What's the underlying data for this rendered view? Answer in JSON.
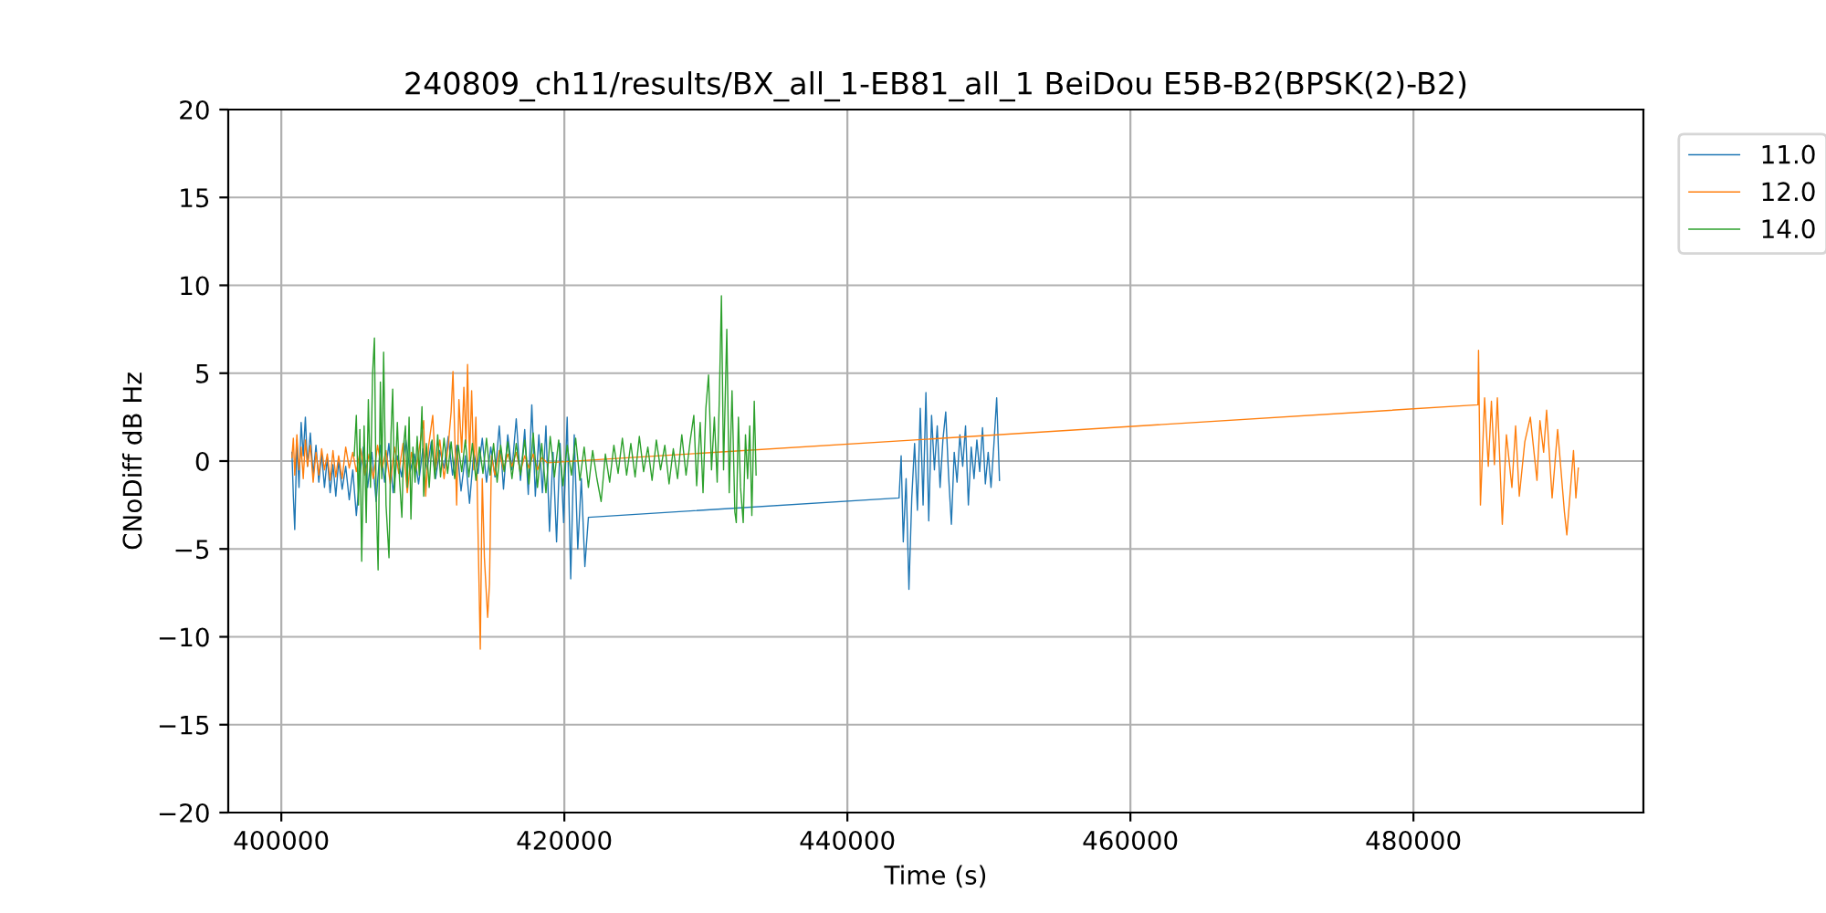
{
  "chart_data": {
    "type": "line",
    "title": "240809_ch11/results/BX_all_1-EB81_all_1 BeiDou E5B-B2(BPSK(2)-B2)",
    "xlabel": "Time (s)",
    "ylabel": "CNoDiff dB Hz",
    "xlim": [
      396250,
      496250
    ],
    "xticks": [
      400000,
      420000,
      440000,
      460000,
      480000
    ],
    "ylim": [
      -20,
      20
    ],
    "yticks": [
      -20,
      -15,
      -10,
      -5,
      0,
      5,
      10,
      15,
      20
    ],
    "grid": true,
    "legend": "top right",
    "series": [
      {
        "name": "11.0",
        "color": "#1f77b4",
        "x": [
          400750,
          400850,
          400950,
          401100,
          401250,
          401400,
          401550,
          401700,
          401850,
          402050,
          402250,
          402450,
          402650,
          402850,
          403050,
          403250,
          403450,
          403650,
          403850,
          404050,
          404300,
          404550,
          404800,
          405050,
          405300,
          405550,
          405800,
          406100,
          406400,
          406700,
          407000,
          407300,
          407600,
          407900,
          408200,
          408500,
          408800,
          409100,
          409400,
          409700,
          410000,
          410300,
          410600,
          410900,
          411200,
          411500,
          411800,
          412100,
          412400,
          412700,
          413000,
          413300,
          413600,
          413900,
          414200,
          414500,
          414800,
          415100,
          415400,
          415700,
          416000,
          416300,
          416600,
          416900,
          417200,
          417450,
          417700,
          417950,
          418200,
          418450,
          418700,
          418950,
          419200,
          419450,
          419700,
          419950,
          420200,
          420450,
          420700,
          420950,
          421200,
          421450,
          421700,
          443650,
          443800,
          443950,
          444150,
          444350,
          444550,
          444750,
          444950,
          445150,
          445350,
          445550,
          445750,
          445950,
          446150,
          446350,
          446550,
          446750,
          446950,
          447150,
          447350,
          447550,
          447750,
          447950,
          448150,
          448350,
          448550,
          448750,
          448950,
          449150,
          449350,
          449550,
          449750,
          449950,
          450150,
          450350,
          450550,
          450750
        ],
        "values": [
          0.5,
          -2.0,
          -3.9,
          1.2,
          -1.5,
          2.2,
          0.3,
          2.5,
          -0.3,
          1.6,
          -0.8,
          0.9,
          -1.2,
          0.4,
          -1.5,
          0.2,
          -1.8,
          -0.2,
          -2.0,
          0.0,
          -1.6,
          -0.3,
          -2.2,
          -0.5,
          -3.1,
          -0.8,
          0.8,
          -1.5,
          0.5,
          -2.3,
          0.9,
          -1.2,
          1.0,
          -1.8,
          0.3,
          -0.9,
          1.2,
          -0.6,
          0.4,
          -1.3,
          0.7,
          -0.5,
          1.1,
          -1.0,
          0.6,
          -0.4,
          1.4,
          -0.8,
          0.9,
          -1.7,
          0.3,
          -2.4,
          0.5,
          -0.7,
          1.3,
          -1.2,
          0.8,
          -0.9,
          2.0,
          -1.6,
          1.5,
          -0.5,
          2.4,
          -1.1,
          1.8,
          -1.9,
          3.2,
          -2.0,
          1.5,
          -1.8,
          2.0,
          -4.0,
          0.5,
          -4.6,
          1.0,
          -3.5,
          2.5,
          -6.7,
          1.5,
          -5.0,
          -1.0,
          -6.0,
          -3.2,
          -2.1,
          0.3,
          -4.6,
          -1.0,
          -7.3,
          -2.1,
          1.0,
          -2.8,
          3.0,
          -2.5,
          3.9,
          -3.4,
          2.6,
          -0.5,
          2.0,
          -1.5,
          1.2,
          2.8,
          -0.8,
          -3.6,
          0.5,
          -1.2,
          1.5,
          -0.3,
          2.0,
          -2.5,
          0.8,
          -1.0,
          1.2,
          -0.6,
          1.9,
          -1.3,
          0.5,
          -1.5,
          0.9,
          3.6,
          -1.1
        ]
      },
      {
        "name": "12.0",
        "color": "#ff7f0e",
        "x": [
          400750,
          400850,
          400950,
          401100,
          401250,
          401400,
          401550,
          401700,
          401850,
          402050,
          402250,
          402450,
          402650,
          402850,
          403050,
          403250,
          403450,
          403650,
          403850,
          404050,
          404300,
          404550,
          404800,
          405050,
          405300,
          405600,
          405900,
          406200,
          406500,
          406800,
          407100,
          407400,
          407700,
          408000,
          408300,
          408600,
          408900,
          409200,
          409500,
          409800,
          410060,
          410200,
          410400,
          410700,
          410900,
          411200,
          411500,
          411800,
          412000,
          412130,
          412390,
          412550,
          412750,
          412900,
          413050,
          413160,
          413300,
          413450,
          413600,
          413750,
          413900,
          414060,
          414200,
          414350,
          414580,
          414710,
          414850,
          415100,
          415400,
          415700,
          416000,
          416300,
          416600,
          416900,
          417200,
          417500,
          417800,
          418100,
          418400,
          418800,
          484555,
          484600,
          484735,
          485030,
          485290,
          485510,
          485720,
          485930,
          486280,
          486570,
          486960,
          487220,
          487480,
          487870,
          488260,
          488730,
          488940,
          489200,
          489410,
          489800,
          490190,
          490670,
          490840,
          491310,
          491480,
          491650
        ],
        "values": [
          0.2,
          1.3,
          -0.8,
          1.5,
          -0.5,
          0.8,
          -1.0,
          1.2,
          -0.3,
          0.9,
          -1.2,
          0.5,
          -0.8,
          0.7,
          -0.5,
          0.4,
          -1.1,
          0.6,
          -0.9,
          0.3,
          -1.0,
          0.8,
          -0.4,
          0.5,
          -0.6,
          0.7,
          -0.8,
          0.4,
          -1.0,
          0.9,
          -0.5,
          0.6,
          -1.3,
          0.8,
          -0.7,
          1.0,
          -1.8,
          0.5,
          -0.6,
          1.0,
          2.3,
          -2.0,
          0.8,
          2.6,
          -0.5,
          1.2,
          -1.0,
          0.9,
          2.8,
          5.1,
          -2.5,
          3.5,
          0.5,
          4.2,
          1.0,
          5.5,
          0.0,
          4.0,
          -0.5,
          2.5,
          -4.0,
          -10.7,
          -1.0,
          -5.5,
          -8.9,
          -7.0,
          0.3,
          -0.8,
          0.6,
          -0.5,
          0.4,
          -0.3,
          0.5,
          -0.6,
          0.3,
          -0.4,
          0.4,
          -0.5,
          0.2,
          -0.1,
          3.2,
          6.3,
          -2.5,
          3.6,
          -0.3,
          3.4,
          -0.2,
          3.6,
          -3.6,
          1.5,
          -1.5,
          2.0,
          -2.0,
          1.1,
          2.5,
          -1.1,
          2.3,
          0.5,
          2.9,
          -2.1,
          1.8,
          -2.9,
          -4.2,
          0.6,
          -2.1,
          -0.4
        ]
      },
      {
        "name": "14.0",
        "color": "#2ca02c",
        "x": [
          405150,
          405300,
          405450,
          405550,
          405680,
          405850,
          406000,
          406150,
          406300,
          406450,
          406580,
          406700,
          406840,
          407000,
          407100,
          407230,
          407400,
          407610,
          407750,
          407870,
          408000,
          408200,
          408350,
          408520,
          408650,
          408770,
          408900,
          409030,
          409160,
          409300,
          409450,
          409600,
          409750,
          409940,
          410060,
          410250,
          410450,
          410650,
          410850,
          411050,
          411250,
          411500,
          411750,
          412000,
          412250,
          412500,
          412750,
          413000,
          413250,
          413500,
          413750,
          414000,
          414250,
          414500,
          414750,
          415000,
          415250,
          415500,
          415750,
          416000,
          416300,
          416600,
          416900,
          417200,
          417500,
          417800,
          418100,
          418400,
          418700,
          419000,
          419300,
          419600,
          419900,
          420200,
          420500,
          420800,
          421100,
          421400,
          421700,
          422000,
          422300,
          422600,
          422900,
          423200,
          423500,
          423800,
          424100,
          424400,
          424700,
          425000,
          425300,
          425600,
          425900,
          426200,
          426500,
          426800,
          427100,
          427400,
          427700,
          428000,
          428300,
          428600,
          428900,
          429150,
          429350,
          429600,
          429800,
          430000,
          430190,
          430400,
          430600,
          430800,
          430950,
          431100,
          431250,
          431480,
          431650,
          431850,
          432050,
          432150,
          432300,
          432450,
          432640,
          432800,
          432950,
          433100,
          433250,
          433420,
          433550
        ],
        "values": [
          0.3,
          2.6,
          -2.5,
          1.8,
          -5.7,
          2.0,
          -3.5,
          3.5,
          -1.5,
          5.0,
          7.0,
          -2.0,
          -6.2,
          4.5,
          -1.0,
          6.2,
          -2.5,
          -5.5,
          1.5,
          4.1,
          -1.8,
          2.2,
          -1.0,
          -3.2,
          1.0,
          2.0,
          -1.5,
          2.5,
          -3.3,
          0.8,
          -1.2,
          1.4,
          -0.8,
          3.1,
          -2.0,
          1.0,
          -1.5,
          1.2,
          -1.0,
          1.5,
          -0.9,
          1.3,
          -0.7,
          1.1,
          -1.0,
          0.9,
          -0.6,
          1.2,
          -0.9,
          1.0,
          -1.1,
          0.8,
          -0.7,
          1.3,
          -0.8,
          1.0,
          -1.2,
          0.9,
          -0.6,
          1.1,
          -1.0,
          1.0,
          -0.8,
          1.2,
          -1.3,
          1.6,
          -1.5,
          1.0,
          -1.8,
          1.4,
          -0.9,
          1.2,
          -1.4,
          0.9,
          -0.8,
          1.3,
          -1.1,
          0.8,
          -1.5,
          0.6,
          -1.0,
          -2.3,
          0.4,
          -1.2,
          0.9,
          -0.7,
          1.3,
          -0.8,
          1.0,
          -0.9,
          1.4,
          -0.6,
          0.8,
          -1.1,
          1.2,
          -0.5,
          0.9,
          -1.3,
          0.7,
          -1.0,
          1.5,
          -0.8,
          1.2,
          2.6,
          -1.4,
          2.2,
          -1.8,
          3.0,
          4.9,
          -0.5,
          2.5,
          -1.2,
          3.5,
          9.4,
          -0.5,
          7.5,
          -1.8,
          4.0,
          -2.9,
          -3.5,
          2.5,
          -1.5,
          -3.5,
          1.5,
          -1.0,
          2.0,
          -3.1,
          3.4,
          -0.8
        ]
      }
    ]
  }
}
